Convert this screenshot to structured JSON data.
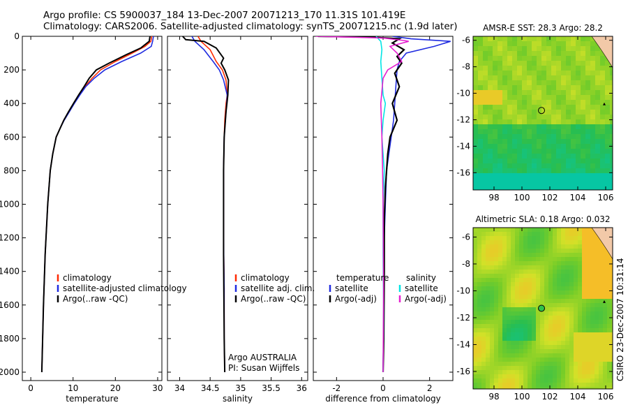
{
  "header": {
    "line1": "Argo profile: CS 5900037_184 13-Dec-2007 20071213_170 11.31S 101.419E",
    "line2": "Climatology: CARS2006. Satellite-adjusted climatology: synTS_20071215.nc (1.9d later)"
  },
  "stamp": "CSIRO 23-Dec-2007 10:31:14",
  "colors": {
    "climatology": "#ff2a00",
    "satellite": "#1f2be0",
    "argo": "#000000",
    "sal_satellite": "#00e5e5",
    "sal_argo": "#e61fd0"
  },
  "chart_data": [
    {
      "id": "temperature",
      "type": "line",
      "xlabel": "temperature",
      "ylabel": "",
      "xlim": [
        -2,
        31
      ],
      "ylim": [
        2050,
        0
      ],
      "xticks": [
        0,
        10,
        20,
        30
      ],
      "yticks": [
        0,
        200,
        400,
        600,
        800,
        1000,
        1200,
        1400,
        1600,
        1800,
        2000
      ],
      "legend": [
        "climatology",
        "satellite-adjusted climatology",
        "Argo(..raw -QC)"
      ],
      "series": [
        {
          "name": "climatology",
          "color_key": "climatology",
          "x": [
            28.6,
            28.4,
            27.0,
            24.0,
            20.0,
            16.5,
            14.5,
            12.8,
            11.5,
            10.2,
            9.0,
            7.8,
            6.9,
            6.0,
            5.2,
            4.6,
            4.0,
            3.4,
            3.0,
            2.6
          ],
          "y": [
            0,
            30,
            60,
            100,
            150,
            200,
            250,
            300,
            350,
            400,
            450,
            500,
            550,
            600,
            700,
            800,
            1000,
            1300,
            1600,
            2000
          ]
        },
        {
          "name": "satellite-adjusted climatology",
          "color_key": "satellite",
          "x": [
            29.0,
            28.8,
            28.5,
            26.0,
            21.5,
            17.5,
            15.0,
            13.0,
            11.6,
            10.3,
            9.1,
            7.9,
            6.9,
            6.0,
            5.2,
            4.6,
            4.0,
            3.4,
            3.0,
            2.6
          ],
          "y": [
            0,
            30,
            60,
            100,
            150,
            200,
            250,
            300,
            350,
            400,
            450,
            500,
            550,
            600,
            700,
            800,
            1000,
            1300,
            1600,
            2000
          ]
        },
        {
          "name": "Argo(..raw -QC)",
          "color_key": "argo",
          "x": [
            28.2,
            28.0,
            26.0,
            22.5,
            18.5,
            15.5,
            13.8,
            12.6,
            11.3,
            10.1,
            8.9,
            7.8,
            6.9,
            6.0,
            5.2,
            4.6,
            4.0,
            3.4,
            3.0,
            2.6
          ],
          "y": [
            0,
            30,
            70,
            110,
            160,
            200,
            250,
            300,
            350,
            400,
            450,
            500,
            550,
            600,
            700,
            800,
            1000,
            1300,
            1600,
            2000
          ]
        }
      ]
    },
    {
      "id": "salinity",
      "type": "line",
      "xlabel": "salinity",
      "xlim": [
        33.8,
        36.1
      ],
      "ylim": [
        2050,
        0
      ],
      "xticks": [
        34,
        34.5,
        35,
        35.5,
        36
      ],
      "xticklabels": [
        "34",
        "34.5",
        "35",
        "35.5",
        "36"
      ],
      "legend": [
        "climatology",
        "satellite adj. clim.",
        "Argo(..raw -QC)"
      ],
      "annotation": [
        "Argo AUSTRALIA",
        "PI: Susan Wijffels"
      ],
      "series": [
        {
          "name": "climatology",
          "color_key": "climatology",
          "x": [
            34.3,
            34.35,
            34.5,
            34.6,
            34.7,
            34.76,
            34.78,
            34.76,
            34.74,
            34.73,
            34.72,
            34.72,
            34.72,
            34.73,
            34.73,
            34.74
          ],
          "y": [
            0,
            30,
            80,
            150,
            200,
            260,
            350,
            400,
            500,
            600,
            800,
            1000,
            1200,
            1500,
            1800,
            2000
          ]
        },
        {
          "name": "satellite adj. clim.",
          "color_key": "satellite",
          "x": [
            34.2,
            34.25,
            34.4,
            34.55,
            34.65,
            34.72,
            34.78,
            34.77,
            34.75,
            34.73,
            34.72,
            34.72,
            34.72,
            34.73,
            34.73,
            34.74
          ],
          "y": [
            0,
            30,
            80,
            150,
            200,
            260,
            350,
            400,
            500,
            600,
            800,
            1000,
            1200,
            1500,
            1800,
            2000
          ]
        },
        {
          "name": "Argo(..raw -QC)",
          "color_key": "argo",
          "x": [
            34.05,
            34.1,
            34.4,
            34.6,
            34.72,
            34.68,
            34.74,
            34.8,
            34.79,
            34.76,
            34.73,
            34.72,
            34.72,
            34.72,
            34.73,
            34.74
          ],
          "y": [
            0,
            20,
            30,
            70,
            130,
            160,
            200,
            260,
            350,
            450,
            600,
            800,
            1000,
            1300,
            1800,
            2000
          ]
        }
      ]
    },
    {
      "id": "difference",
      "type": "line",
      "xlabel": "difference from climatology",
      "xlim": [
        -3,
        3
      ],
      "ylim": [
        2050,
        0
      ],
      "xticks": [
        -2,
        0,
        2
      ],
      "legend_left": {
        "title": "temperature",
        "items": [
          "satellite",
          "Argo(-adj)"
        ]
      },
      "legend_right": {
        "title": "salinity",
        "items": [
          "satellite",
          "Argo(-adj)"
        ]
      },
      "series": [
        {
          "name": "temperature satellite",
          "color_key": "satellite",
          "x": [
            0.4,
            1.2,
            2.9,
            2.2,
            1.0,
            0.7,
            0.6,
            0.55,
            0.5,
            0.45,
            0.35,
            0.25,
            0.15,
            0.1,
            0.05,
            0.03,
            0.02,
            0.0
          ],
          "y": [
            0,
            15,
            30,
            60,
            100,
            150,
            200,
            300,
            400,
            500,
            600,
            700,
            800,
            1000,
            1200,
            1500,
            1800,
            2000
          ]
        },
        {
          "name": "temperature Argo(-adj)",
          "color_key": "argo",
          "x": [
            -2.8,
            -0.5,
            0.7,
            0.4,
            0.9,
            0.6,
            0.8,
            0.5,
            0.7,
            0.4,
            0.6,
            0.3,
            0.2,
            0.1,
            0.05,
            0.05,
            0.03,
            0.0
          ],
          "y": [
            0,
            5,
            15,
            40,
            80,
            120,
            160,
            220,
            300,
            400,
            500,
            600,
            700,
            900,
            1100,
            1400,
            1800,
            2000
          ]
        },
        {
          "name": "salinity satellite",
          "color_key": "sal_satellite",
          "x": [
            -0.3,
            -0.1,
            -0.05,
            -0.1,
            -0.05,
            0.0,
            0.1,
            0.0,
            -0.05,
            0.05,
            0.0,
            0.0,
            0.02,
            0.0
          ],
          "y": [
            0,
            30,
            80,
            150,
            250,
            350,
            400,
            500,
            600,
            800,
            1000,
            1300,
            1600,
            2000
          ]
        },
        {
          "name": "salinity Argo(-adj)",
          "color_key": "sal_argo",
          "x": [
            -2.9,
            0.0,
            0.9,
            1.1,
            0.3,
            0.6,
            0.8,
            0.2,
            0.0,
            -0.1,
            -0.05,
            -0.02,
            0.0,
            0.02,
            0.0
          ],
          "y": [
            0,
            10,
            25,
            30,
            60,
            100,
            150,
            200,
            250,
            400,
            600,
            800,
            1000,
            1500,
            2000
          ]
        }
      ]
    },
    {
      "id": "sst-map",
      "type": "heatmap",
      "title": "AMSR-E SST: 28.3 Argo: 28.2",
      "xlim": [
        96.5,
        106.5
      ],
      "ylim": [
        -17.3,
        -5.7
      ],
      "xticks": [
        98,
        100,
        102,
        104,
        106
      ],
      "yticks": [
        -6,
        -8,
        -10,
        -12,
        -14,
        -16
      ],
      "profile_location": [
        101.4,
        -11.3
      ]
    },
    {
      "id": "sla-map",
      "type": "heatmap",
      "title": "Altimetric SLA: 0.18 Argo: 0.032",
      "xlim": [
        96.5,
        106.5
      ],
      "ylim": [
        -17.3,
        -5.3
      ],
      "xticks": [
        98,
        100,
        102,
        104,
        106
      ],
      "yticks": [
        -6,
        -8,
        -10,
        -12,
        -14,
        -16
      ],
      "profile_location": [
        101.4,
        -11.3
      ]
    }
  ]
}
